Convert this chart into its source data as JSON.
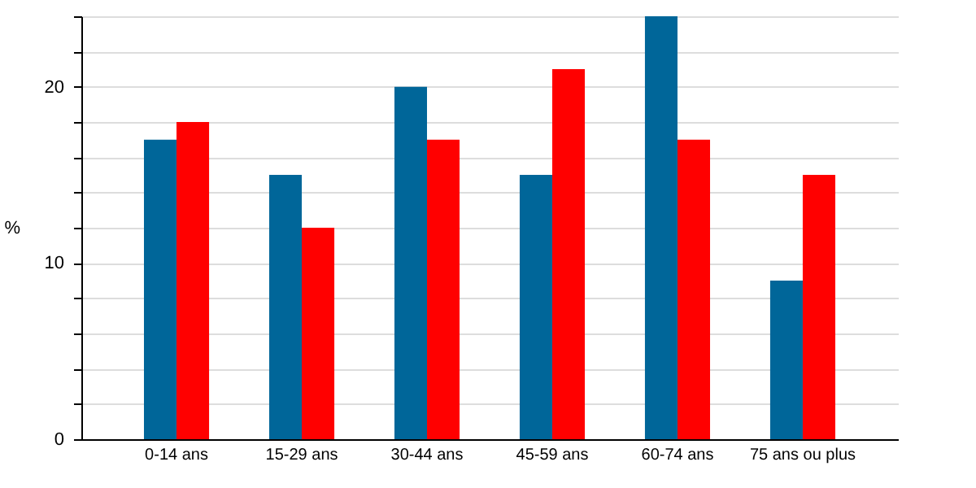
{
  "chart_data": {
    "type": "bar",
    "ylabel": "%",
    "categories": [
      "0-14 ans",
      "15-29 ans",
      "30-44 ans",
      "45-59 ans",
      "60-74 ans",
      "75 ans ou plus"
    ],
    "series": [
      {
        "color": "#006699",
        "values": [
          17,
          15,
          20,
          15,
          24,
          9
        ]
      },
      {
        "color": "#ff0000",
        "values": [
          18,
          12,
          17,
          21,
          17,
          15
        ]
      }
    ],
    "ylim": [
      0,
      24
    ],
    "yticks": [
      0,
      {
        "value": 2,
        "label": null
      },
      {
        "value": 4,
        "label": null
      },
      {
        "value": 6,
        "label": null
      },
      {
        "value": 8,
        "label": null
      },
      10,
      {
        "value": 12,
        "label": null
      },
      {
        "value": 14,
        "label": null
      },
      {
        "value": 16,
        "label": null
      },
      {
        "value": 18,
        "label": null
      },
      20,
      {
        "value": 22,
        "label": null
      },
      {
        "value": 24,
        "label": null
      }
    ],
    "grid": "y"
  }
}
